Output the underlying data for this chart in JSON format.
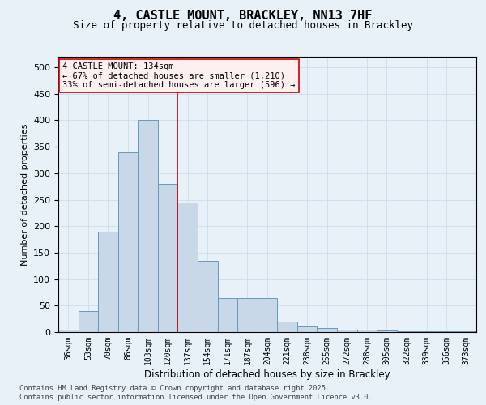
{
  "title_line1": "4, CASTLE MOUNT, BRACKLEY, NN13 7HF",
  "title_line2": "Size of property relative to detached houses in Brackley",
  "xlabel": "Distribution of detached houses by size in Brackley",
  "ylabel": "Number of detached properties",
  "bar_color": "#c8d8e8",
  "bar_edge_color": "#6699bb",
  "grid_color": "#ccddee",
  "background_color": "#e8f0f8",
  "annotation_box_facecolor": "#fff0f0",
  "annotation_box_edgecolor": "#cc0000",
  "vline_color": "#cc0000",
  "categories": [
    "36sqm",
    "53sqm",
    "70sqm",
    "86sqm",
    "103sqm",
    "120sqm",
    "137sqm",
    "154sqm",
    "171sqm",
    "187sqm",
    "204sqm",
    "221sqm",
    "238sqm",
    "255sqm",
    "272sqm",
    "288sqm",
    "305sqm",
    "322sqm",
    "339sqm",
    "356sqm",
    "373sqm"
  ],
  "values": [
    5,
    40,
    190,
    340,
    400,
    280,
    245,
    135,
    65,
    65,
    65,
    20,
    10,
    7,
    5,
    4,
    3,
    2,
    1,
    1,
    2
  ],
  "vline_x": 5.5,
  "annotation_line1": "4 CASTLE MOUNT: 134sqm",
  "annotation_line2": "← 67% of detached houses are smaller (1,210)",
  "annotation_line3": "33% of semi-detached houses are larger (596) →",
  "ylim": [
    0,
    520
  ],
  "yticks": [
    0,
    50,
    100,
    150,
    200,
    250,
    300,
    350,
    400,
    450,
    500
  ],
  "title_fontsize": 11,
  "subtitle_fontsize": 9,
  "footer_line1": "Contains HM Land Registry data © Crown copyright and database right 2025.",
  "footer_line2": "Contains public sector information licensed under the Open Government Licence v3.0."
}
